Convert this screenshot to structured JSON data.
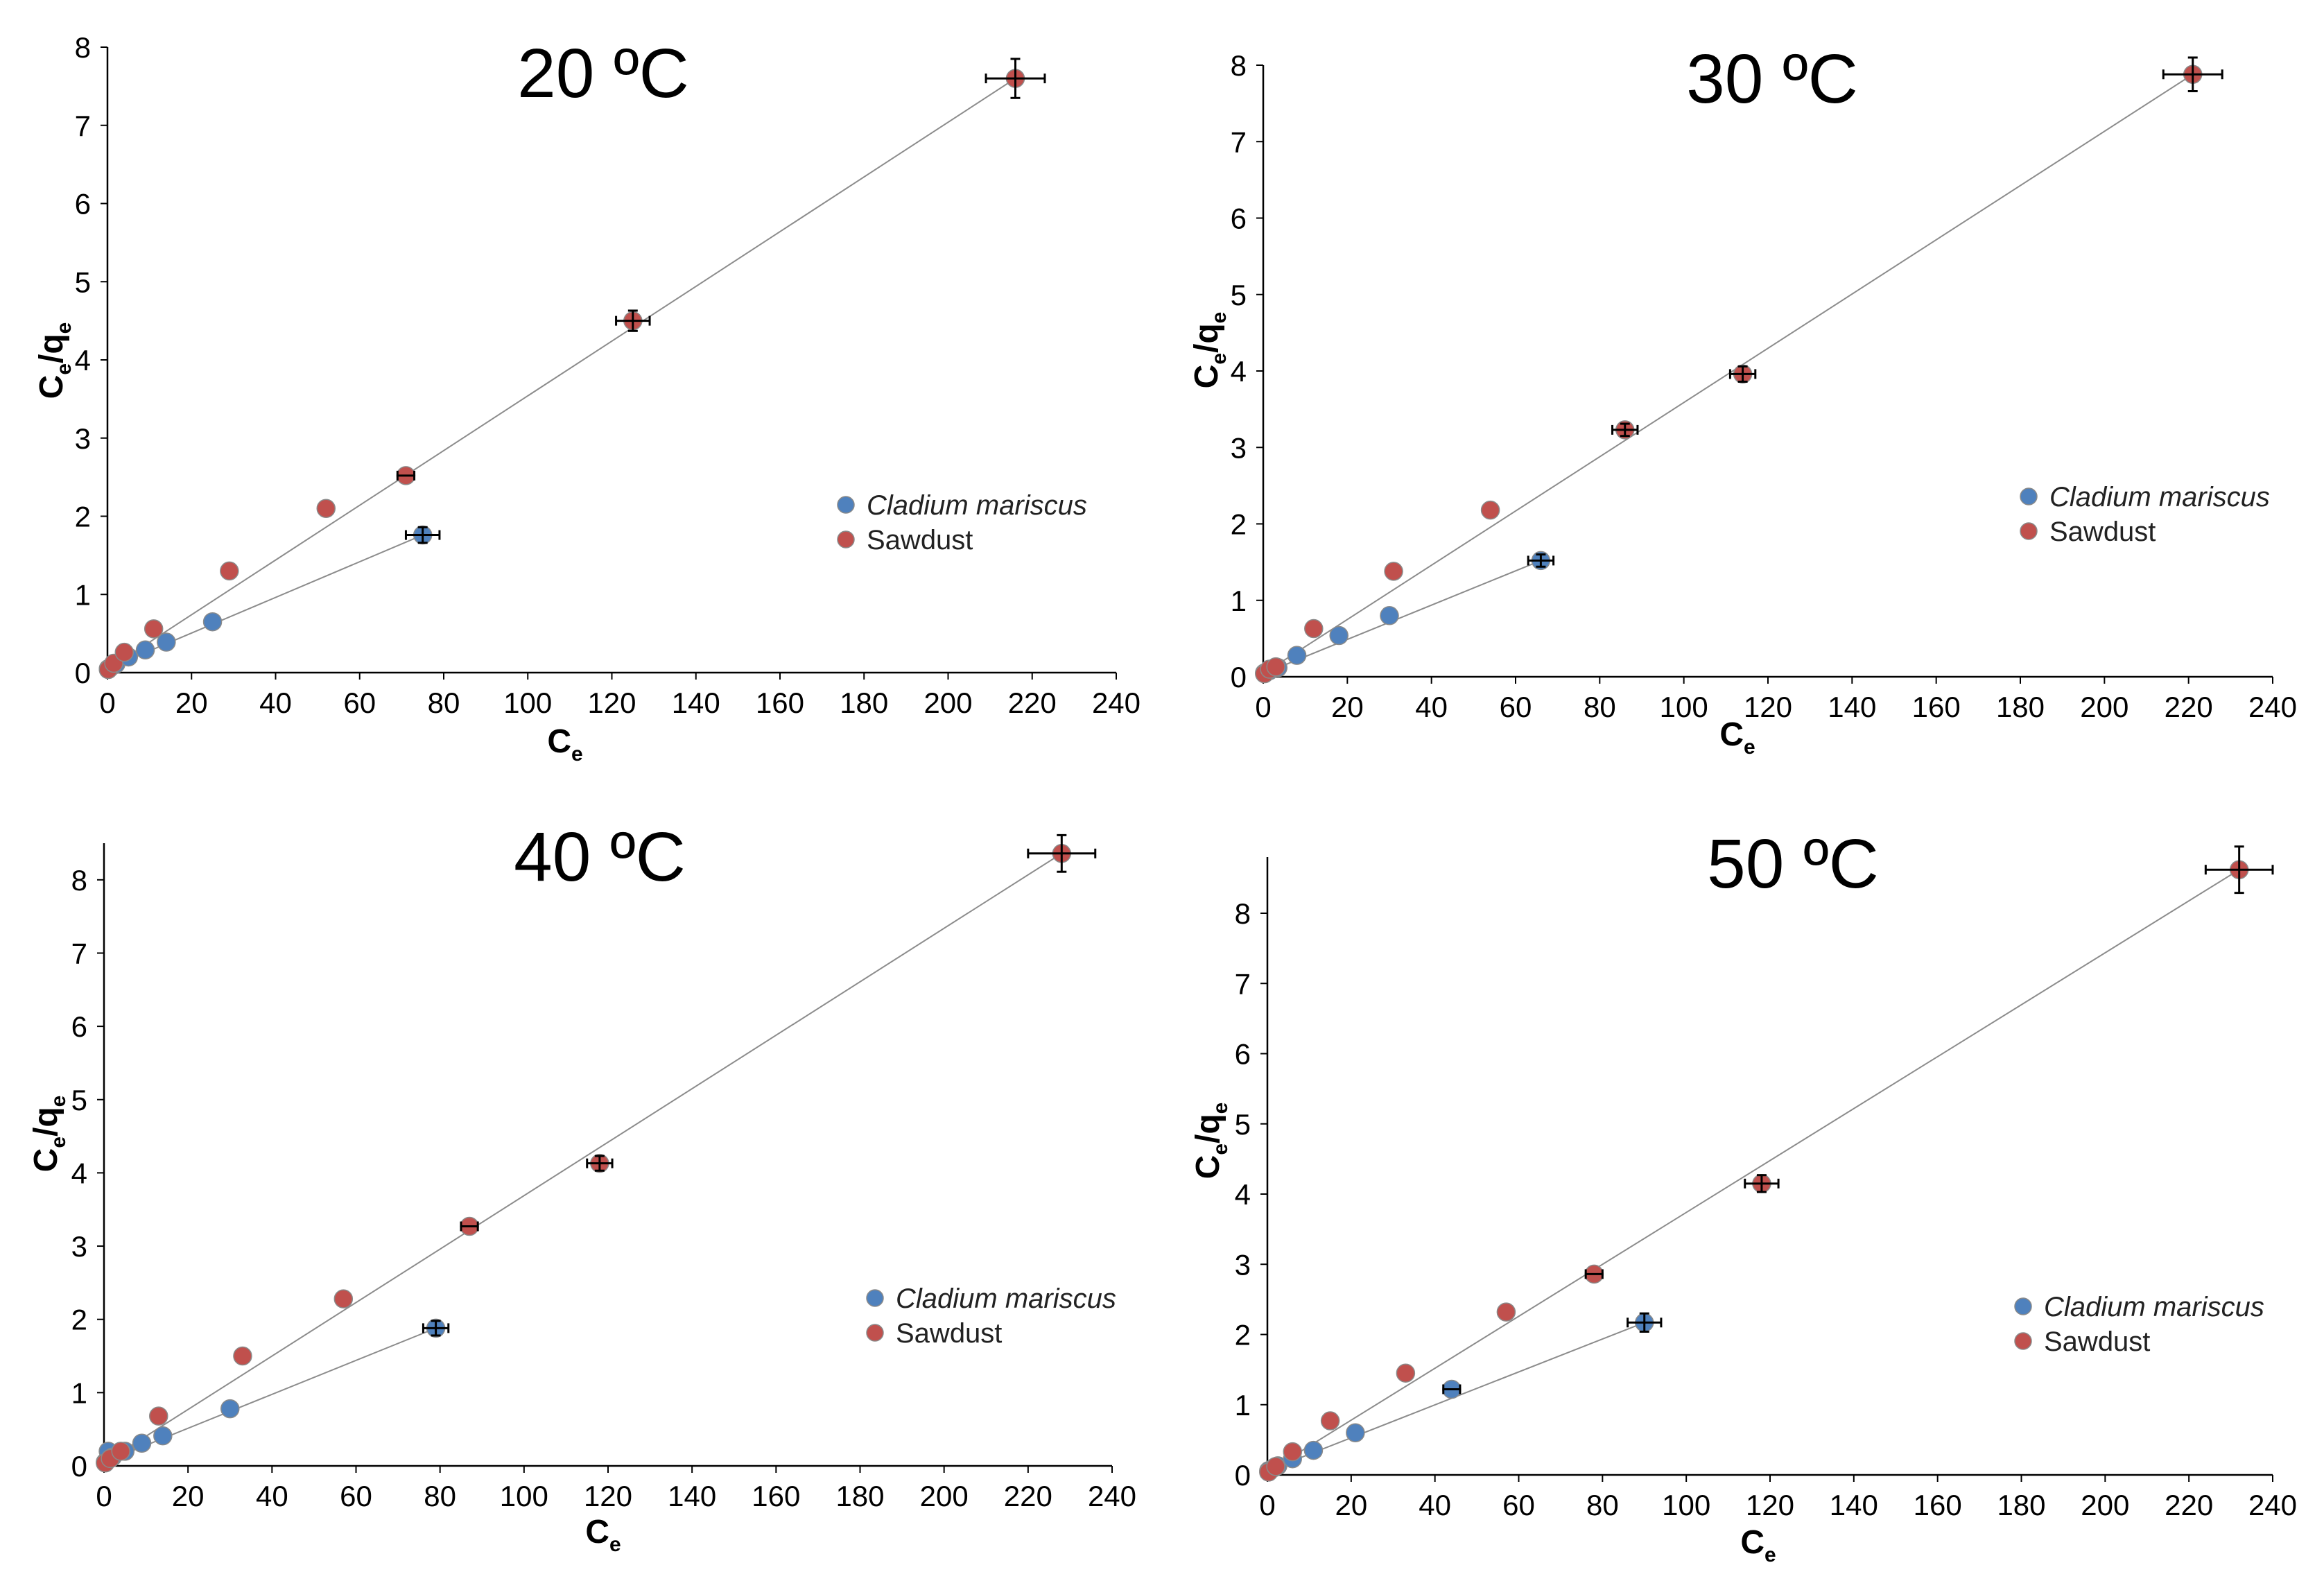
{
  "colors": {
    "cladium": "#4f81bd",
    "sawdust": "#c0504d",
    "marker_edge": "#8a8a8a",
    "fit_line": "#8c8c8c",
    "axis": "#000000"
  },
  "chart_data": [
    {
      "type": "scatter",
      "title": "20 ºC",
      "xlabel": {
        "base": "C",
        "sub": "e"
      },
      "ylabel": {
        "base1": "C",
        "sub1": "e",
        "mid": "/q",
        "sub2": "e"
      },
      "xlim": [
        0,
        240
      ],
      "ylim": [
        0,
        8
      ],
      "xticks": [
        0,
        20,
        40,
        60,
        80,
        100,
        120,
        140,
        160,
        180,
        200,
        220,
        240
      ],
      "yticks": [
        0,
        1,
        2,
        3,
        4,
        5,
        6,
        7,
        8
      ],
      "legend_position": "right-middle",
      "series": [
        {
          "name": "Cladium mariscus",
          "italic": true,
          "color_key": "cladium",
          "fit": [
            [
              0,
              0.05
            ],
            [
              75,
              1.76
            ]
          ],
          "points": [
            {
              "x": 0.2,
              "y": 0.05
            },
            {
              "x": 1,
              "y": 0.08
            },
            {
              "x": 2,
              "y": 0.11
            },
            {
              "x": 5,
              "y": 0.2
            },
            {
              "x": 9,
              "y": 0.29
            },
            {
              "x": 14,
              "y": 0.39
            },
            {
              "x": 25,
              "y": 0.65
            },
            {
              "x": 75,
              "y": 1.76,
              "xerr": 4,
              "yerr": 0.1
            }
          ]
        },
        {
          "name": "Sawdust",
          "italic": false,
          "color_key": "sawdust",
          "fit": [
            [
              0,
              0.04
            ],
            [
              216,
              7.6
            ]
          ],
          "points": [
            {
              "x": 0.2,
              "y": 0.04
            },
            {
              "x": 1.5,
              "y": 0.12
            },
            {
              "x": 4,
              "y": 0.26
            },
            {
              "x": 11,
              "y": 0.56
            },
            {
              "x": 29,
              "y": 1.3
            },
            {
              "x": 52,
              "y": 2.1
            },
            {
              "x": 71,
              "y": 2.52,
              "xerr": 2
            },
            {
              "x": 125,
              "y": 4.5,
              "xerr": 4,
              "yerr": 0.13
            },
            {
              "x": 216,
              "y": 7.6,
              "xerr": 7,
              "yerr": 0.25
            }
          ]
        }
      ]
    },
    {
      "type": "scatter",
      "title": "30 ºC",
      "xlabel": {
        "base": "C",
        "sub": "e"
      },
      "ylabel": {
        "base1": "C",
        "sub1": "e",
        "mid": "/q",
        "sub2": "e"
      },
      "xlim": [
        0,
        240
      ],
      "ylim": [
        0,
        8
      ],
      "xticks": [
        0,
        20,
        40,
        60,
        80,
        100,
        120,
        140,
        160,
        180,
        200,
        220,
        240
      ],
      "yticks": [
        0,
        1,
        2,
        3,
        4,
        5,
        6,
        7,
        8
      ],
      "legend_position": "right-middle",
      "series": [
        {
          "name": "Cladium mariscus",
          "italic": true,
          "color_key": "cladium",
          "fit": [
            [
              0,
              0.04
            ],
            [
              66,
              1.52
            ]
          ],
          "points": [
            {
              "x": 0.3,
              "y": 0.05
            },
            {
              "x": 1.5,
              "y": 0.08
            },
            {
              "x": 3.5,
              "y": 0.12
            },
            {
              "x": 8,
              "y": 0.28
            },
            {
              "x": 18,
              "y": 0.54
            },
            {
              "x": 30,
              "y": 0.8
            },
            {
              "x": 66,
              "y": 1.52,
              "xerr": 3,
              "yerr": 0.08
            }
          ]
        },
        {
          "name": "Sawdust",
          "italic": false,
          "color_key": "sawdust",
          "fit": [
            [
              0,
              0.04
            ],
            [
              221,
              7.88
            ]
          ],
          "points": [
            {
              "x": 0.3,
              "y": 0.04
            },
            {
              "x": 1.5,
              "y": 0.1
            },
            {
              "x": 3,
              "y": 0.13
            },
            {
              "x": 12,
              "y": 0.63
            },
            {
              "x": 31,
              "y": 1.38
            },
            {
              "x": 54,
              "y": 2.18
            },
            {
              "x": 86,
              "y": 3.23,
              "xerr": 3,
              "yerr": 0.08
            },
            {
              "x": 114,
              "y": 3.96,
              "xerr": 3,
              "yerr": 0.1
            },
            {
              "x": 221,
              "y": 7.88,
              "xerr": 7,
              "yerr": 0.22
            }
          ]
        }
      ]
    },
    {
      "type": "scatter",
      "title": "40 ºC",
      "xlabel": {
        "base": "C",
        "sub": "e"
      },
      "ylabel": {
        "base1": "C",
        "sub1": "e",
        "mid": "/q",
        "sub2": "e"
      },
      "xlim": [
        0,
        240
      ],
      "ylim": [
        0,
        8.5
      ],
      "xticks": [
        0,
        20,
        40,
        60,
        80,
        100,
        120,
        140,
        160,
        180,
        200,
        220,
        240
      ],
      "yticks": [
        0,
        1,
        2,
        3,
        4,
        5,
        6,
        7,
        8
      ],
      "legend_position": "right-middle",
      "series": [
        {
          "name": "Cladium mariscus",
          "italic": true,
          "color_key": "cladium",
          "fit": [
            [
              0,
              0.05
            ],
            [
              79,
              1.88
            ]
          ],
          "points": [
            {
              "x": 0.3,
              "y": 0.05
            },
            {
              "x": 1,
              "y": 0.2
            },
            {
              "x": 2,
              "y": 0.12
            },
            {
              "x": 5,
              "y": 0.2
            },
            {
              "x": 9,
              "y": 0.31
            },
            {
              "x": 14,
              "y": 0.41
            },
            {
              "x": 30,
              "y": 0.78
            },
            {
              "x": 79,
              "y": 1.88,
              "xerr": 3,
              "yerr": 0.1
            }
          ]
        },
        {
          "name": "Sawdust",
          "italic": false,
          "color_key": "sawdust",
          "fit": [
            [
              0,
              0.04
            ],
            [
              228,
              8.36
            ]
          ],
          "points": [
            {
              "x": 0.3,
              "y": 0.04
            },
            {
              "x": 1.5,
              "y": 0.1
            },
            {
              "x": 4,
              "y": 0.2
            },
            {
              "x": 13,
              "y": 0.68
            },
            {
              "x": 33,
              "y": 1.5
            },
            {
              "x": 57,
              "y": 2.28
            },
            {
              "x": 87,
              "y": 3.27,
              "xerr": 2
            },
            {
              "x": 118,
              "y": 4.13,
              "xerr": 3,
              "yerr": 0.1
            },
            {
              "x": 228,
              "y": 8.36,
              "xerr": 8,
              "yerr": 0.25
            }
          ]
        }
      ]
    },
    {
      "type": "scatter",
      "title": "50 ºC",
      "xlabel": {
        "base": "C",
        "sub": "e"
      },
      "ylabel": {
        "base1": "C",
        "sub1": "e",
        "mid": "/q",
        "sub2": "e"
      },
      "xlim": [
        0,
        240
      ],
      "ylim": [
        0,
        8.8
      ],
      "xticks": [
        0,
        20,
        40,
        60,
        80,
        100,
        120,
        140,
        160,
        180,
        200,
        220,
        240
      ],
      "yticks": [
        0,
        1,
        2,
        3,
        4,
        5,
        6,
        7,
        8
      ],
      "legend_position": "right-middle",
      "series": [
        {
          "name": "Cladium mariscus",
          "italic": true,
          "color_key": "cladium",
          "fit": [
            [
              0,
              0.06
            ],
            [
              90,
              2.17
            ]
          ],
          "points": [
            {
              "x": 0.3,
              "y": 0.06
            },
            {
              "x": 1.5,
              "y": 0.1
            },
            {
              "x": 2.5,
              "y": 0.13
            },
            {
              "x": 6,
              "y": 0.23
            },
            {
              "x": 11,
              "y": 0.35
            },
            {
              "x": 21,
              "y": 0.6
            },
            {
              "x": 44,
              "y": 1.22,
              "xerr": 2
            },
            {
              "x": 90,
              "y": 2.17,
              "xerr": 4,
              "yerr": 0.13
            }
          ]
        },
        {
          "name": "Sawdust",
          "italic": false,
          "color_key": "sawdust",
          "fit": [
            [
              0,
              0.04
            ],
            [
              232,
              8.62
            ]
          ],
          "points": [
            {
              "x": 0.3,
              "y": 0.04
            },
            {
              "x": 2,
              "y": 0.12
            },
            {
              "x": 6,
              "y": 0.33
            },
            {
              "x": 15,
              "y": 0.77
            },
            {
              "x": 33,
              "y": 1.45
            },
            {
              "x": 57,
              "y": 2.32
            },
            {
              "x": 78,
              "y": 2.86,
              "xerr": 2
            },
            {
              "x": 118,
              "y": 4.15,
              "xerr": 4,
              "yerr": 0.12
            },
            {
              "x": 232,
              "y": 8.62,
              "xerr": 8,
              "yerr": 0.33
            }
          ]
        }
      ]
    }
  ]
}
